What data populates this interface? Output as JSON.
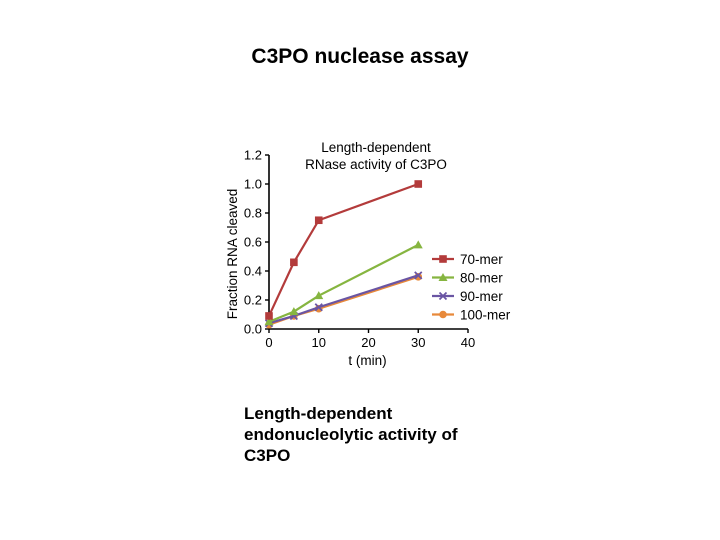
{
  "slide": {
    "title": "C3PO nuclease assay",
    "caption_lines": [
      "Length-dependent",
      "endonucleolytic activity of",
      "C3PO"
    ]
  },
  "chart_data": {
    "type": "line",
    "title": "Length-dependent\nRNase activity of C3PO",
    "xlabel": "t (min)",
    "ylabel": "Fraction RNA cleaved",
    "xlim": [
      0,
      40
    ],
    "ylim": [
      0,
      1.2
    ],
    "xticks": [
      0,
      10,
      20,
      30,
      40
    ],
    "yticks": [
      0.0,
      0.2,
      0.4,
      0.6,
      0.8,
      1.0,
      1.2
    ],
    "legend_position": "right",
    "series": [
      {
        "name": "70-mer",
        "color": "#b33b3b",
        "marker": "square",
        "x": [
          0,
          5,
          10,
          30
        ],
        "y": [
          0.09,
          0.46,
          0.75,
          1.0
        ]
      },
      {
        "name": "80-mer",
        "color": "#86b540",
        "marker": "triangle",
        "x": [
          0,
          5,
          10,
          30
        ],
        "y": [
          0.05,
          0.12,
          0.23,
          0.58
        ]
      },
      {
        "name": "90-mer",
        "color": "#6a55a3",
        "marker": "x",
        "x": [
          0,
          5,
          10,
          30
        ],
        "y": [
          0.04,
          0.09,
          0.15,
          0.37
        ]
      },
      {
        "name": "100-mer",
        "color": "#e8893a",
        "marker": "circle",
        "x": [
          0,
          5,
          10,
          30
        ],
        "y": [
          0.03,
          0.09,
          0.14,
          0.36
        ]
      }
    ]
  }
}
